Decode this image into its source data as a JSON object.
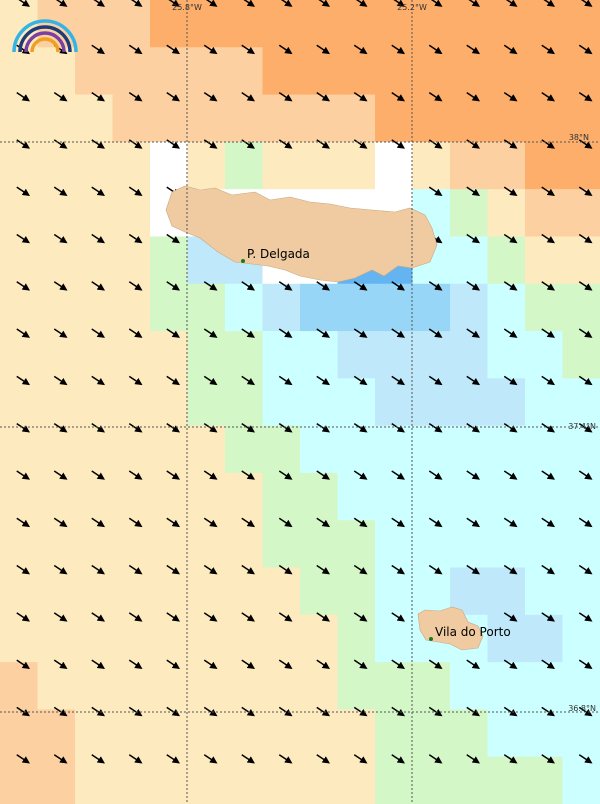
{
  "map": {
    "longitude_labels": [
      "25.8°W",
      "25.2°W"
    ],
    "latitude_labels": [
      "38°N",
      "37.4°N",
      "36.8°N"
    ],
    "places": [
      "P. Delgada",
      "Vila do Porto"
    ]
  }
}
